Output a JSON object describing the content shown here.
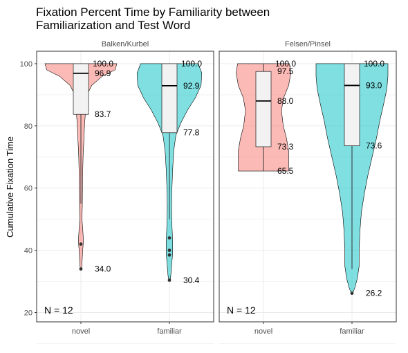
{
  "chart_data": {
    "type": "violin",
    "title_line1": "Fixation Percent Time by Familiarity between",
    "title_line2": "Familiarization and Test Word",
    "ylabel": "Cumulative Fixation Time",
    "xlabel": "",
    "ylim": [
      17,
      104
    ],
    "yticks": [
      20,
      40,
      60,
      80,
      100
    ],
    "categories": [
      "novel",
      "familiar"
    ],
    "grid": true,
    "legend": "none",
    "colors": {
      "novel": "#F8766D",
      "familiar": "#00BFC4",
      "box": "#F2F2F2",
      "panel_border": "#333333",
      "grid": "#EBEBEB"
    },
    "panels": [
      {
        "name": "Balken/Kurbel",
        "n_text": "N =  12",
        "groups": [
          {
            "category": "novel",
            "box": {
              "q1": 83.7,
              "median": 96.9,
              "q3": 100.0,
              "whisker_low": 55.0,
              "whisker_high": 100.0
            },
            "outliers": [
              42.0,
              34.0
            ],
            "labels": [
              {
                "text": "100.0",
                "value": 100.0
              },
              {
                "text": "96.9",
                "value": 96.9
              },
              {
                "text": "83.7",
                "value": 83.7
              },
              {
                "text": "34.0",
                "value": 34.0
              }
            ],
            "density": [
              [
                100.0,
                1.0
              ],
              [
                98.0,
                0.95
              ],
              [
                96.0,
                0.6
              ],
              [
                93.0,
                0.3
              ],
              [
                90.0,
                0.17
              ],
              [
                85.0,
                0.13
              ],
              [
                80.0,
                0.1
              ],
              [
                75.0,
                0.08
              ],
              [
                70.0,
                0.06
              ],
              [
                65.0,
                0.05
              ],
              [
                60.0,
                0.045
              ],
              [
                55.0,
                0.04
              ],
              [
                50.0,
                0.03
              ],
              [
                47.0,
                0.05
              ],
              [
                43.0,
                0.07
              ],
              [
                40.0,
                0.05
              ],
              [
                37.0,
                0.035
              ],
              [
                34.0,
                0.02
              ]
            ]
          },
          {
            "category": "familiar",
            "box": {
              "q1": 77.8,
              "median": 92.9,
              "q3": 100.0,
              "whisker_low": 50.0,
              "whisker_high": 100.0
            },
            "outliers": [
              44.0,
              40.0,
              38.5,
              30.4
            ],
            "labels": [
              {
                "text": "100.0",
                "value": 100.0
              },
              {
                "text": "92.9",
                "value": 92.9
              },
              {
                "text": "77.8",
                "value": 77.8
              },
              {
                "text": "30.4",
                "value": 30.4
              }
            ],
            "density": [
              [
                100.0,
                0.8
              ],
              [
                97.0,
                0.9
              ],
              [
                93.0,
                0.88
              ],
              [
                89.0,
                0.72
              ],
              [
                85.0,
                0.5
              ],
              [
                81.0,
                0.32
              ],
              [
                77.0,
                0.18
              ],
              [
                72.0,
                0.12
              ],
              [
                66.0,
                0.09
              ],
              [
                60.0,
                0.07
              ],
              [
                54.0,
                0.06
              ],
              [
                48.0,
                0.07
              ],
              [
                43.0,
                0.09
              ],
              [
                39.0,
                0.09
              ],
              [
                35.0,
                0.06
              ],
              [
                32.0,
                0.04
              ],
              [
                30.4,
                0.02
              ]
            ]
          }
        ]
      },
      {
        "name": "Felsen/Pinsel",
        "n_text": "N =  12",
        "groups": [
          {
            "category": "novel",
            "box": {
              "q1": 73.3,
              "median": 88.0,
              "q3": 97.5,
              "whisker_low": 65.5,
              "whisker_high": 100.0
            },
            "outliers": [],
            "labels": [
              {
                "text": "100.0",
                "value": 100.0
              },
              {
                "text": "97.5",
                "value": 97.5
              },
              {
                "text": "88.0",
                "value": 88.0
              },
              {
                "text": "73.3",
                "value": 73.3
              },
              {
                "text": "65.5",
                "value": 65.5
              }
            ],
            "density": [
              [
                100.0,
                0.72
              ],
              [
                97.0,
                0.76
              ],
              [
                93.0,
                0.7
              ],
              [
                89.0,
                0.56
              ],
              [
                85.0,
                0.5
              ],
              [
                80.0,
                0.55
              ],
              [
                76.0,
                0.64
              ],
              [
                72.0,
                0.7
              ],
              [
                68.0,
                0.7
              ],
              [
                65.5,
                0.7
              ]
            ]
          },
          {
            "category": "familiar",
            "box": {
              "q1": 73.6,
              "median": 93.0,
              "q3": 100.0,
              "whisker_low": 34.0,
              "whisker_high": 100.0
            },
            "outliers": [
              26.2
            ],
            "labels": [
              {
                "text": "100.0",
                "value": 100.0
              },
              {
                "text": "93.0",
                "value": 93.0
              },
              {
                "text": "73.6",
                "value": 73.6
              },
              {
                "text": "26.2",
                "value": 26.2
              }
            ],
            "density": [
              [
                100.0,
                1.0
              ],
              [
                96.0,
                1.0
              ],
              [
                92.0,
                0.97
              ],
              [
                87.0,
                0.88
              ],
              [
                82.0,
                0.78
              ],
              [
                76.0,
                0.68
              ],
              [
                70.0,
                0.56
              ],
              [
                64.0,
                0.44
              ],
              [
                58.0,
                0.34
              ],
              [
                52.0,
                0.26
              ],
              [
                46.0,
                0.22
              ],
              [
                40.0,
                0.2
              ],
              [
                35.0,
                0.2
              ],
              [
                31.0,
                0.15
              ],
              [
                28.0,
                0.08
              ],
              [
                26.2,
                0.02
              ]
            ]
          }
        ]
      }
    ]
  }
}
